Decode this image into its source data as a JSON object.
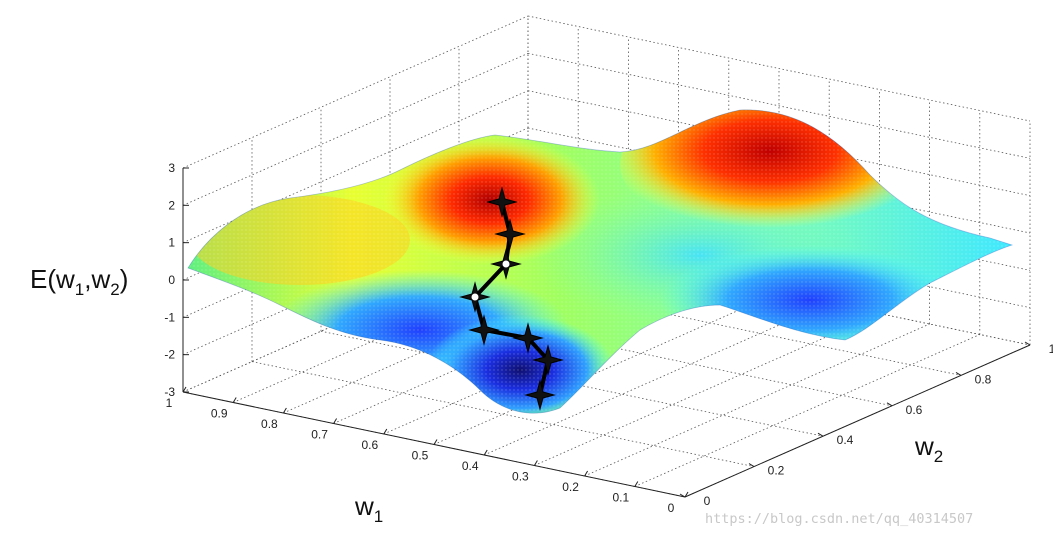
{
  "chart_data": {
    "type": "surface",
    "z_label": {
      "main": "E(w",
      "sub1": "1",
      "mid": ",w",
      "sub2": "2",
      "end": ")"
    },
    "x_label": {
      "main": "w",
      "sub": "1"
    },
    "y_label": {
      "main": "w",
      "sub": "2"
    },
    "z_ticks": [
      "3",
      "2",
      "1",
      "0",
      "-1",
      "-2",
      "-3"
    ],
    "w1_ticks": [
      "1",
      "0.9",
      "0.8",
      "0.7",
      "0.6",
      "0.5",
      "0.4",
      "0.3",
      "0.2",
      "0.1",
      "0"
    ],
    "w2_ticks": [
      "0",
      "0.2",
      "0.4",
      "0.6",
      "0.8",
      "1"
    ],
    "zlim": [
      -3,
      3
    ],
    "w1_range": [
      0,
      1
    ],
    "w2_range": [
      0,
      1
    ],
    "grid": true,
    "colormap": "jet",
    "path_markers": [
      {
        "w1": 0.68,
        "w2": 0.22,
        "E": 1.3,
        "highlight": false
      },
      {
        "w1": 0.64,
        "w2": 0.3,
        "E": 0.85,
        "highlight": false
      },
      {
        "w1": 0.6,
        "w2": 0.37,
        "E": 0.3,
        "highlight": true
      },
      {
        "w1": 0.68,
        "w2": 0.5,
        "E": -0.05,
        "highlight": true
      },
      {
        "w1": 0.66,
        "w2": 0.57,
        "E": -1.0,
        "highlight": false
      },
      {
        "w1": 0.55,
        "w2": 0.58,
        "E": -1.2,
        "highlight": false
      },
      {
        "w1": 0.47,
        "w2": 0.62,
        "E": -1.6,
        "highlight": false
      },
      {
        "w1": 0.42,
        "w2": 0.7,
        "E": -2.3,
        "highlight": false
      }
    ]
  },
  "watermark": "https://blog.csdn.net/qq_40314507"
}
